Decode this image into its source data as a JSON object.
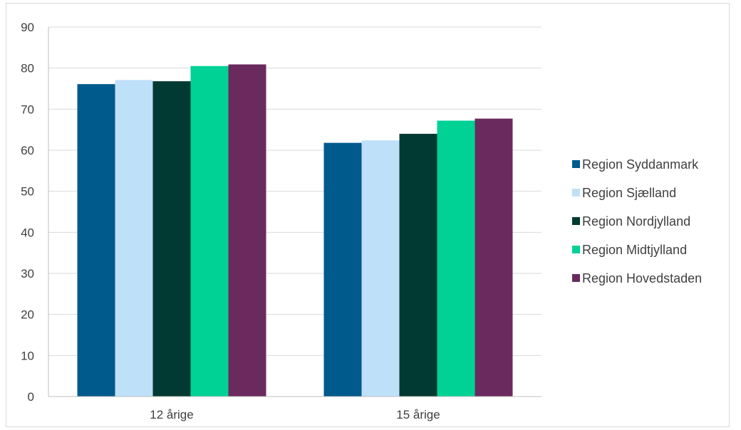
{
  "chart_data": {
    "type": "bar",
    "categories": [
      "12 årige",
      "15 årige"
    ],
    "series": [
      {
        "name": "Region Syddanmark",
        "color": "#005a8c",
        "values": [
          76.1,
          61.8
        ]
      },
      {
        "name": "Region Sjælland",
        "color": "#bfe0f9",
        "values": [
          77.1,
          62.4
        ]
      },
      {
        "name": "Region Nordjylland",
        "color": "#003a32",
        "values": [
          76.8,
          64.0
        ]
      },
      {
        "name": "Region Midtjylland",
        "color": "#00d296",
        "values": [
          80.5,
          67.2
        ]
      },
      {
        "name": "Region Hovedstaden",
        "color": "#6b2a5e",
        "values": [
          80.9,
          67.7
        ]
      }
    ],
    "ylim": [
      0,
      90
    ],
    "yticks": [
      "0",
      "10",
      "20",
      "30",
      "40",
      "50",
      "60",
      "70",
      "80",
      "90"
    ],
    "grid": true,
    "legend_position": "right",
    "gridline_color": "#d9d9d9",
    "axis_color": "#bfbfbf"
  }
}
